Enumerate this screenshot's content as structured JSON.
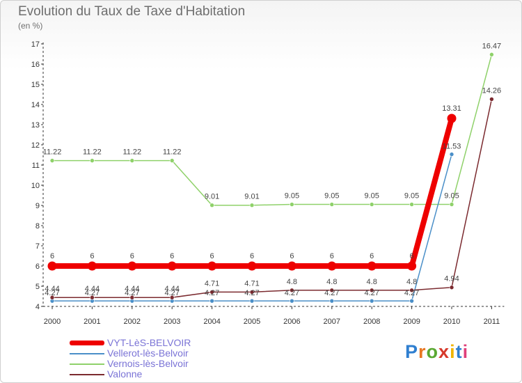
{
  "title": "Evolution du Taux de Taxe d'Habitation",
  "unit": "(en %)",
  "logo": "Proxiti",
  "chart_data": {
    "type": "line",
    "title": "Evolution du Taux de Taxe d'Habitation",
    "ylabel": "(en %)",
    "categories": [
      "2000",
      "2001",
      "2002",
      "2003",
      "2004",
      "2005",
      "2006",
      "2007",
      "2008",
      "2009",
      "2010",
      "2011"
    ],
    "ylim": [
      4,
      17
    ],
    "yticks": [
      4,
      5,
      6,
      7,
      8,
      9,
      10,
      11,
      12,
      13,
      14,
      15,
      16,
      17
    ],
    "grid": false,
    "legend": "bottom-left",
    "series": [
      {
        "name": "VYT-LèS-BELVOIR",
        "color": "#ee0000",
        "values": [
          6,
          6,
          6,
          6,
          6,
          6,
          6,
          6,
          6,
          6,
          13.31,
          null
        ],
        "labels": [
          "6",
          "6",
          "6",
          "6",
          "6",
          "6",
          "6",
          "6",
          "6",
          "6",
          "13.31",
          null
        ]
      },
      {
        "name": "Vellerot-lès-Belvoir",
        "color": "#4a8fc8",
        "values": [
          4.27,
          4.27,
          4.27,
          4.27,
          4.27,
          4.27,
          4.27,
          4.27,
          4.27,
          4.27,
          11.53,
          null
        ],
        "labels": [
          "4.27",
          "4.27",
          "4.27",
          "4.27",
          "4.27",
          "4.27",
          "4.27",
          "4.27",
          "4.27",
          "4.27",
          "11.53",
          null
        ]
      },
      {
        "name": "Vernois-lès-Belvoir",
        "color": "#8fd16a",
        "values": [
          11.22,
          11.22,
          11.22,
          11.22,
          9.01,
          9.01,
          9.05,
          9.05,
          9.05,
          9.05,
          9.05,
          16.47
        ],
        "labels": [
          "11.22",
          "11.22",
          "11.22",
          "11.22",
          "9.01",
          "9.01",
          "9.05",
          "9.05",
          "9.05",
          "9.05",
          "9.05",
          "16.47"
        ]
      },
      {
        "name": "Valonne",
        "color": "#7b2a2f",
        "values": [
          4.44,
          4.44,
          4.44,
          4.44,
          4.71,
          4.71,
          4.8,
          4.8,
          4.8,
          4.8,
          4.94,
          14.26
        ],
        "labels": [
          "4.44",
          "4.44",
          "4.44",
          "4.44",
          "4.71",
          "4.71",
          "4.8",
          "4.8",
          "4.8",
          "4.8",
          "4.94",
          "14.26"
        ]
      }
    ]
  }
}
